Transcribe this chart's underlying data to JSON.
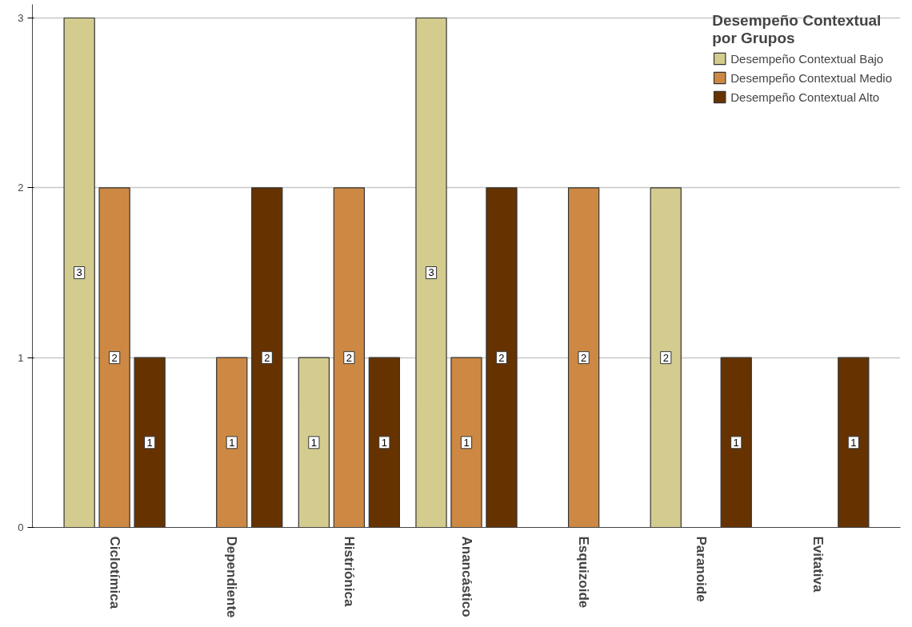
{
  "chart_data": {
    "type": "bar",
    "legend_title": "Desempeño Contextual\npor Grupos",
    "categories": [
      "Ciclotímica",
      "Dependiente",
      "Histriónica",
      "Anancástico",
      "Esquizoide",
      "Paranoide",
      "Evitativa"
    ],
    "series": [
      {
        "name": "Desempeño Contextual Bajo",
        "color": "#d3cc8e",
        "values": [
          3,
          null,
          1,
          3,
          null,
          2,
          null
        ]
      },
      {
        "name": "Desempeño Contextual Medio",
        "color": "#cd8943",
        "values": [
          2,
          1,
          2,
          1,
          2,
          null,
          null
        ]
      },
      {
        "name": "Desempeño Contextual Alto",
        "color": "#663300",
        "values": [
          1,
          2,
          1,
          2,
          null,
          1,
          1
        ]
      }
    ],
    "ylim": [
      0,
      3.08
    ],
    "yticks": [
      0,
      1,
      2,
      3
    ],
    "grid": "y",
    "legend": "top right",
    "data_labels": true
  }
}
